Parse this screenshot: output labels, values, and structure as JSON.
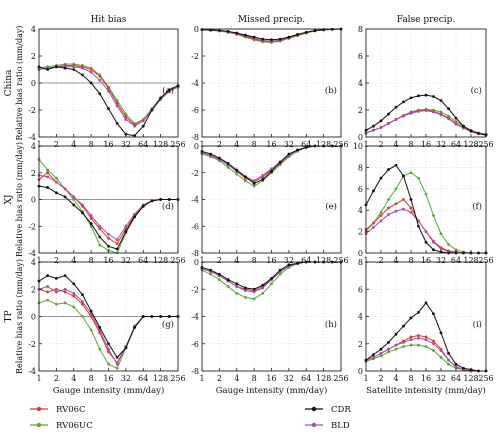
{
  "chart_data": {
    "type": "line",
    "x": [
      1,
      1.41,
      2,
      2.83,
      4,
      5.66,
      8,
      11.3,
      16,
      22.6,
      32,
      45.3,
      64,
      90.5,
      128,
      181,
      256
    ],
    "x_ticks": [
      "1",
      "2",
      "4",
      "8",
      "16",
      "32",
      "64",
      "128",
      "256"
    ],
    "x_tick_values": [
      1,
      2,
      4,
      8,
      16,
      32,
      64,
      128,
      256
    ],
    "column_titles": [
      "Hit bias",
      "Missed precip.",
      "False precip."
    ],
    "row_labels": [
      "China",
      "XJ",
      "TP"
    ],
    "ylabel": "Relative bias ratio (mm/day)",
    "xlabel_gauge": "Gauge intensity (mm/day)",
    "xlabel_satellite": "Satellite intensity (mm/day)",
    "series_styles": [
      {
        "name": "RV06C",
        "color": "#d83a2e"
      },
      {
        "name": "RV06UC",
        "color": "#5aa83a"
      },
      {
        "name": "CDR",
        "color": "#111111"
      },
      {
        "name": "BLD",
        "color": "#a64ea6"
      }
    ],
    "legend": [
      {
        "name": "RV06C",
        "color": "#d83a2e"
      },
      {
        "name": "RV06UC",
        "color": "#5aa83a"
      },
      {
        "name": "CDR",
        "color": "#111111"
      },
      {
        "name": "BLD",
        "color": "#a64ea6"
      }
    ],
    "panels": [
      {
        "id": "(a)",
        "ylim": [
          -4,
          4
        ],
        "yticks": [
          -4,
          -2,
          0,
          2,
          4
        ],
        "zeroline": true,
        "series": {
          "RV06C": [
            1.0,
            1.1,
            1.2,
            1.3,
            1.3,
            1.2,
            1.0,
            0.5,
            -0.4,
            -1.5,
            -2.5,
            -3.1,
            -2.8,
            -2.0,
            -1.2,
            -0.6,
            -0.3
          ],
          "RV06UC": [
            1.1,
            1.2,
            1.3,
            1.4,
            1.4,
            1.3,
            1.1,
            0.6,
            -0.3,
            -1.3,
            -2.3,
            -3.0,
            -2.7,
            -1.9,
            -1.1,
            -0.5,
            -0.2
          ],
          "CDR": [
            1.2,
            1.0,
            1.2,
            1.1,
            1.0,
            0.6,
            0.0,
            -0.8,
            -1.9,
            -3.0,
            -3.8,
            -3.9,
            -3.2,
            -2.0,
            -1.1,
            -0.5,
            -0.2
          ],
          "BLD": [
            1.0,
            1.1,
            1.2,
            1.2,
            1.2,
            1.1,
            0.8,
            0.2,
            -0.6,
            -1.7,
            -2.7,
            -3.2,
            -2.8,
            -2.0,
            -1.2,
            -0.6,
            -0.3
          ]
        }
      },
      {
        "id": "(b)",
        "ylim": [
          -8,
          0
        ],
        "yticks": [
          -8,
          -6,
          -4,
          -2,
          0
        ],
        "zeroline": false,
        "series": {
          "RV06C": [
            -0.05,
            -0.08,
            -0.12,
            -0.2,
            -0.35,
            -0.55,
            -0.75,
            -0.9,
            -0.95,
            -0.85,
            -0.65,
            -0.45,
            -0.25,
            -0.12,
            -0.06,
            -0.02,
            0
          ],
          "RV06UC": [
            -0.05,
            -0.1,
            -0.15,
            -0.25,
            -0.4,
            -0.6,
            -0.8,
            -0.95,
            -1.0,
            -0.9,
            -0.7,
            -0.5,
            -0.3,
            -0.15,
            -0.07,
            -0.03,
            0
          ],
          "CDR": [
            -0.05,
            -0.07,
            -0.1,
            -0.18,
            -0.3,
            -0.45,
            -0.6,
            -0.75,
            -0.8,
            -0.75,
            -0.6,
            -0.4,
            -0.25,
            -0.12,
            -0.05,
            -0.02,
            0
          ],
          "BLD": [
            -0.05,
            -0.08,
            -0.12,
            -0.2,
            -0.33,
            -0.5,
            -0.7,
            -0.85,
            -0.9,
            -0.82,
            -0.62,
            -0.42,
            -0.24,
            -0.11,
            -0.05,
            -0.02,
            0
          ]
        }
      },
      {
        "id": "(c)",
        "ylim": [
          0,
          8
        ],
        "yticks": [
          0,
          2,
          4,
          6,
          8
        ],
        "zeroline": false,
        "series": {
          "RV06C": [
            0.3,
            0.5,
            0.7,
            1.0,
            1.3,
            1.6,
            1.8,
            1.95,
            2.0,
            1.9,
            1.7,
            1.4,
            1.0,
            0.7,
            0.45,
            0.3,
            0.2
          ],
          "RV06UC": [
            0.3,
            0.5,
            0.7,
            1.0,
            1.3,
            1.6,
            1.85,
            2.0,
            2.05,
            2.0,
            1.85,
            1.55,
            1.15,
            0.8,
            0.5,
            0.3,
            0.2
          ],
          "CDR": [
            0.5,
            0.8,
            1.2,
            1.7,
            2.2,
            2.6,
            2.9,
            3.05,
            3.1,
            3.0,
            2.7,
            2.1,
            1.4,
            0.8,
            0.45,
            0.25,
            0.15
          ],
          "BLD": [
            0.3,
            0.5,
            0.7,
            1.0,
            1.3,
            1.55,
            1.75,
            1.9,
            1.95,
            1.85,
            1.65,
            1.35,
            0.95,
            0.65,
            0.4,
            0.25,
            0.15
          ]
        }
      },
      {
        "id": "(d)",
        "ylim": [
          -4,
          4
        ],
        "yticks": [
          -4,
          -2,
          0,
          2,
          4
        ],
        "zeroline": true,
        "series": {
          "RV06C": [
            1.5,
            2.0,
            1.3,
            0.8,
            0.2,
            -0.5,
            -1.4,
            -2.2,
            -2.9,
            -3.3,
            -2.2,
            -1.2,
            -0.5,
            -0.1,
            0,
            0,
            0
          ],
          "RV06UC": [
            3.0,
            2.2,
            1.6,
            0.8,
            0.0,
            -0.9,
            -2.0,
            -3.4,
            -3.8,
            -4.0,
            -2.5,
            -1.3,
            -0.5,
            -0.1,
            0,
            0,
            0
          ],
          "CDR": [
            1.0,
            0.9,
            0.5,
            0.2,
            -0.4,
            -1.0,
            -1.8,
            -2.8,
            -3.5,
            -3.7,
            -2.4,
            -1.3,
            -0.5,
            -0.1,
            0,
            0,
            0
          ],
          "BLD": [
            1.8,
            1.7,
            1.3,
            0.8,
            0.2,
            -0.4,
            -1.2,
            -2.0,
            -2.6,
            -3.0,
            -2.0,
            -1.1,
            -0.4,
            -0.1,
            0,
            0,
            0
          ]
        }
      },
      {
        "id": "(e)",
        "ylim": [
          -8,
          0
        ],
        "yticks": [
          -8,
          -6,
          -4,
          -2,
          0
        ],
        "zeroline": false,
        "series": {
          "RV06C": [
            -0.5,
            -0.7,
            -1.0,
            -1.4,
            -1.9,
            -2.4,
            -2.7,
            -2.3,
            -1.8,
            -1.3,
            -0.7,
            -0.3,
            -0.1,
            0,
            0,
            0,
            0
          ],
          "RV06UC": [
            -0.6,
            -0.8,
            -1.1,
            -1.6,
            -2.1,
            -2.6,
            -3.0,
            -2.6,
            -2.0,
            -1.4,
            -0.8,
            -0.4,
            -0.1,
            0,
            0,
            0,
            0
          ],
          "CDR": [
            -0.4,
            -0.6,
            -0.9,
            -1.3,
            -1.8,
            -2.3,
            -2.8,
            -2.5,
            -1.9,
            -1.2,
            -0.6,
            -0.3,
            -0.1,
            0,
            0,
            0,
            0
          ],
          "BLD": [
            -0.5,
            -0.7,
            -1.0,
            -1.4,
            -1.9,
            -2.3,
            -2.6,
            -2.2,
            -1.7,
            -1.2,
            -0.7,
            -0.3,
            -0.1,
            0,
            0,
            0,
            0
          ]
        }
      },
      {
        "id": "(f)",
        "ylim": [
          0,
          10
        ],
        "yticks": [
          0,
          2,
          4,
          6,
          8,
          10
        ],
        "zeroline": false,
        "series": {
          "RV06C": [
            2.2,
            2.8,
            3.5,
            4.2,
            4.6,
            5.0,
            4.2,
            3.0,
            2.0,
            1.1,
            0.5,
            0.2,
            0.1,
            0,
            0,
            0,
            0
          ],
          "RV06UC": [
            2.0,
            2.8,
            3.8,
            5.0,
            6.0,
            7.2,
            7.5,
            7.0,
            5.5,
            3.5,
            1.8,
            0.8,
            0.3,
            0.1,
            0,
            0,
            0
          ],
          "CDR": [
            4.5,
            5.8,
            7.0,
            7.8,
            8.2,
            7.2,
            5.0,
            2.5,
            1.0,
            0.3,
            0.1,
            0,
            0,
            0,
            0,
            0,
            0
          ],
          "BLD": [
            1.8,
            2.4,
            3.0,
            3.6,
            3.9,
            4.1,
            3.8,
            3.0,
            2.0,
            1.0,
            0.4,
            0.1,
            0,
            0,
            0,
            0,
            0
          ]
        }
      },
      {
        "id": "(g)",
        "ylim": [
          -4,
          4
        ],
        "yticks": [
          -4,
          -2,
          0,
          2,
          4
        ],
        "zeroline": true,
        "series": {
          "RV06C": [
            2.0,
            1.8,
            2.0,
            1.8,
            1.5,
            0.9,
            0.0,
            -1.2,
            -2.6,
            -3.4,
            -2.2,
            -0.8,
            0,
            0,
            0,
            0,
            0
          ],
          "RV06UC": [
            1.0,
            1.2,
            0.9,
            1.0,
            0.7,
            0.0,
            -1.0,
            -2.4,
            -3.5,
            -3.8,
            -2.3,
            -0.7,
            0,
            0,
            0,
            0,
            0
          ],
          "CDR": [
            2.6,
            3.0,
            2.8,
            3.0,
            2.4,
            1.6,
            0.4,
            -0.8,
            -2.0,
            -3.0,
            -2.3,
            -0.8,
            0,
            0,
            0,
            0,
            0
          ],
          "BLD": [
            2.0,
            2.2,
            1.8,
            2.0,
            1.7,
            1.1,
            0.2,
            -1.0,
            -2.4,
            -3.5,
            -2.2,
            -0.8,
            0,
            0,
            0,
            0,
            0
          ]
        }
      },
      {
        "id": "(h)",
        "ylim": [
          -8,
          0
        ],
        "yticks": [
          -8,
          -6,
          -4,
          -2,
          0
        ],
        "zeroline": false,
        "series": {
          "RV06C": [
            -0.5,
            -0.7,
            -1.0,
            -1.4,
            -1.8,
            -2.0,
            -2.1,
            -1.8,
            -1.3,
            -0.7,
            -0.3,
            -0.1,
            0,
            0,
            0,
            0,
            0
          ],
          "RV06UC": [
            -0.6,
            -0.9,
            -1.3,
            -1.8,
            -2.3,
            -2.6,
            -2.7,
            -2.3,
            -1.6,
            -0.9,
            -0.4,
            -0.1,
            0,
            0,
            0,
            0,
            0
          ],
          "CDR": [
            -0.4,
            -0.6,
            -0.9,
            -1.3,
            -1.6,
            -1.9,
            -2.0,
            -1.7,
            -1.2,
            -0.6,
            -0.2,
            -0.1,
            0,
            0,
            0,
            0,
            0
          ],
          "BLD": [
            -0.5,
            -0.7,
            -1.0,
            -1.4,
            -1.8,
            -2.1,
            -2.2,
            -1.9,
            -1.3,
            -0.7,
            -0.3,
            -0.1,
            0,
            0,
            0,
            0,
            0
          ]
        }
      },
      {
        "id": "(i)",
        "ylim": [
          0,
          8
        ],
        "yticks": [
          0,
          2,
          4,
          6,
          8
        ],
        "zeroline": false,
        "series": {
          "RV06C": [
            0.8,
            1.0,
            1.3,
            1.6,
            1.9,
            2.2,
            2.5,
            2.6,
            2.5,
            2.2,
            1.6,
            0.8,
            0.3,
            0.1,
            0,
            0,
            0
          ],
          "RV06UC": [
            0.7,
            0.9,
            1.1,
            1.4,
            1.6,
            1.8,
            1.9,
            1.9,
            1.8,
            1.5,
            1.0,
            0.5,
            0.2,
            0.1,
            0,
            0,
            0
          ],
          "CDR": [
            0.8,
            1.2,
            1.6,
            2.1,
            2.7,
            3.3,
            3.9,
            4.3,
            5.0,
            4.2,
            2.8,
            1.3,
            0.5,
            0.2,
            0.1,
            0,
            0
          ],
          "BLD": [
            0.8,
            1.0,
            1.3,
            1.6,
            1.9,
            2.1,
            2.3,
            2.4,
            2.3,
            2.0,
            1.5,
            0.8,
            0.3,
            0.1,
            0,
            0,
            0
          ]
        }
      }
    ]
  }
}
